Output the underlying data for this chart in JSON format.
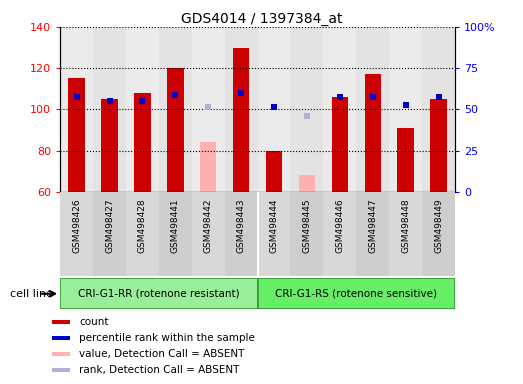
{
  "title": "GDS4014 / 1397384_at",
  "samples": [
    "GSM498426",
    "GSM498427",
    "GSM498428",
    "GSM498441",
    "GSM498442",
    "GSM498443",
    "GSM498444",
    "GSM498445",
    "GSM498446",
    "GSM498447",
    "GSM498448",
    "GSM498449"
  ],
  "count_values": [
    115,
    105,
    108,
    120,
    null,
    130,
    80,
    null,
    106,
    117,
    91,
    105
  ],
  "count_absent": [
    null,
    null,
    null,
    null,
    84,
    null,
    null,
    68,
    null,
    null,
    null,
    null
  ],
  "rank_values": [
    106,
    104,
    104,
    107,
    null,
    108,
    101,
    null,
    106,
    106,
    102,
    106
  ],
  "rank_absent": [
    null,
    null,
    null,
    null,
    101,
    null,
    null,
    97,
    null,
    null,
    null,
    null
  ],
  "ylim": [
    60,
    140
  ],
  "y2lim": [
    0,
    100
  ],
  "yticks": [
    60,
    80,
    100,
    120,
    140
  ],
  "y2ticks": [
    0,
    25,
    50,
    75,
    100
  ],
  "y2ticklabels": [
    "0",
    "25",
    "50",
    "75",
    "100%"
  ],
  "group1_label": "CRI-G1-RR (rotenone resistant)",
  "group2_label": "CRI-G1-RS (rotenone sensitive)",
  "group1_count": 6,
  "group2_count": 6,
  "cell_line_label": "cell line",
  "bar_width": 0.5,
  "count_color": "#cc0000",
  "rank_color": "#0000cc",
  "absent_count_color": "#ffb0b0",
  "absent_rank_color": "#b0b0d8",
  "group1_bg": "#99ee99",
  "group2_bg": "#66ee66",
  "col_bg_light": "#d8d8d8",
  "col_bg_dark": "#c8c8c8",
  "ybase": 60,
  "legend_labels": [
    "count",
    "percentile rank within the sample",
    "value, Detection Call = ABSENT",
    "rank, Detection Call = ABSENT"
  ],
  "legend_colors": [
    "#cc0000",
    "#0000cc",
    "#ffb0b0",
    "#b0b0d8"
  ]
}
